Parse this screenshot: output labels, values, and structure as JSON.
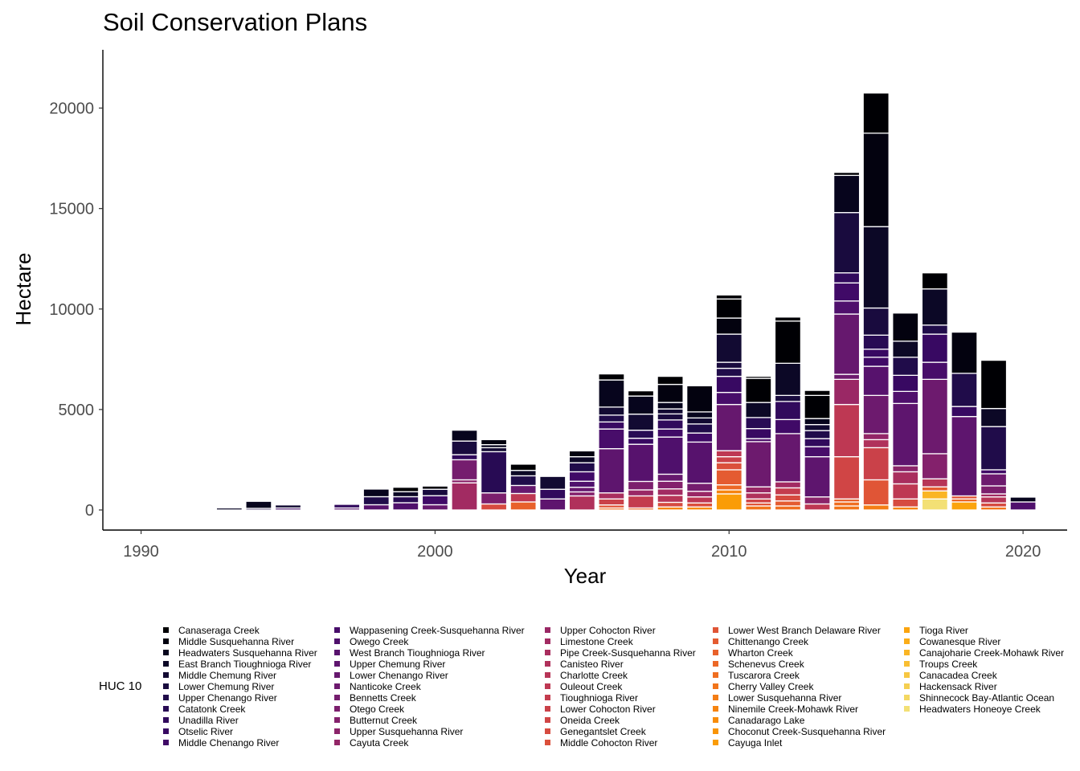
{
  "chart_data": {
    "type": "bar",
    "stacked": true,
    "title": "Soil Conservation Plans",
    "xlabel": "Year",
    "ylabel": "Hectare",
    "xlim": [
      1988.7,
      2021.5
    ],
    "ylim": [
      -1000,
      22900
    ],
    "x_ticks": [
      1990,
      2000,
      2010,
      2020
    ],
    "y_ticks": [
      0,
      5000,
      10000,
      15000,
      20000
    ],
    "grid": false,
    "legend_position": "bottom",
    "legend_title": "HUC 10",
    "legend_entries": [
      {
        "name": "Canaseraga Creek",
        "color": "#000004"
      },
      {
        "name": "Middle Susquehanna River",
        "color": "#03020f"
      },
      {
        "name": "Headwaters Susquehanna River",
        "color": "#07051d"
      },
      {
        "name": "East Branch Tioughnioga River",
        "color": "#0c0826"
      },
      {
        "name": "Middle Chemung River",
        "color": "#120a32"
      },
      {
        "name": "Lower Chemung River",
        "color": "#190b3e"
      },
      {
        "name": "Upper Chenango River",
        "color": "#200c4a"
      },
      {
        "name": "Catatonk Creek",
        "color": "#280b54"
      },
      {
        "name": "Unadilla River",
        "color": "#310a5c"
      },
      {
        "name": "Otselic River",
        "color": "#380962"
      },
      {
        "name": "Middle Chenango River",
        "color": "#400a67"
      },
      {
        "name": "Wappasening Creek-Susquehanna River",
        "color": "#480d6a"
      },
      {
        "name": "Owego Creek",
        "color": "#4f106c"
      },
      {
        "name": "West Branch Tioughnioga River",
        "color": "#57126d"
      },
      {
        "name": "Upper Chemung River",
        "color": "#5e156e"
      },
      {
        "name": "Lower Chenango River",
        "color": "#66186e"
      },
      {
        "name": "Nanticoke Creek",
        "color": "#6d1a6e"
      },
      {
        "name": "Bennetts Creek",
        "color": "#751d6e"
      },
      {
        "name": "Otego Creek",
        "color": "#7c1f6d"
      },
      {
        "name": "Butternut Creek",
        "color": "#84216c"
      },
      {
        "name": "Upper Susquehanna River",
        "color": "#8b246a"
      },
      {
        "name": "Cayuta Creek",
        "color": "#932667"
      },
      {
        "name": "Upper Cohocton River",
        "color": "#9a2865"
      },
      {
        "name": "Limestone Creek",
        "color": "#a22b62"
      },
      {
        "name": "Pipe Creek-Susquehanna River",
        "color": "#a92e5e"
      },
      {
        "name": "Canisteo River",
        "color": "#b0315b"
      },
      {
        "name": "Charlotte Creek",
        "color": "#b73557"
      },
      {
        "name": "Ouleout Creek",
        "color": "#be3853"
      },
      {
        "name": "Tioughnioga River",
        "color": "#c43c4e"
      },
      {
        "name": "Lower Cohocton River",
        "color": "#ca4149"
      },
      {
        "name": "Oneida Creek",
        "color": "#d04545"
      },
      {
        "name": "Genegantslet Creek",
        "color": "#d64b40"
      },
      {
        "name": "Middle Cohocton River",
        "color": "#db503b"
      },
      {
        "name": "Lower West Branch Delaware River",
        "color": "#e05536"
      },
      {
        "name": "Chittenango Creek",
        "color": "#e45b31"
      },
      {
        "name": "Wharton Creek",
        "color": "#e8612b"
      },
      {
        "name": "Schenevus Creek",
        "color": "#ec6826"
      },
      {
        "name": "Tuscarora Creek",
        "color": "#ef6e21"
      },
      {
        "name": "Cherry Valley Creek",
        "color": "#f2751b"
      },
      {
        "name": "Lower Susquehanna River",
        "color": "#f47d15"
      },
      {
        "name": "Ninemile Creek-Mohawk River",
        "color": "#f6840f"
      },
      {
        "name": "Canadarago Lake",
        "color": "#f88c09"
      },
      {
        "name": "Choconut Creek-Susquehanna River",
        "color": "#f99406"
      },
      {
        "name": "Cayuga Inlet",
        "color": "#fa9c07"
      },
      {
        "name": "Tioga River",
        "color": "#fba40e"
      },
      {
        "name": "Cowanesque River",
        "color": "#fbad18"
      },
      {
        "name": "Canajoharie Creek-Mohawk River",
        "color": "#fab524"
      },
      {
        "name": "Troups Creek",
        "color": "#f9be32"
      },
      {
        "name": "Canacadea Creek",
        "color": "#f7c741"
      },
      {
        "name": "Hackensack River",
        "color": "#f5cf51"
      },
      {
        "name": "Shinnecock Bay-Atlantic Ocean",
        "color": "#f4d862"
      },
      {
        "name": "Headwaters Honeoye Creek",
        "color": "#f3e075"
      }
    ],
    "bars": [
      {
        "x": 1990,
        "segments": [
          [
            1,
            50
          ]
        ]
      },
      {
        "x": 1993,
        "segments": [
          [
            3,
            100
          ]
        ]
      },
      {
        "x": 1994,
        "segments": [
          [
            6,
            80
          ],
          [
            2,
            350
          ]
        ]
      },
      {
        "x": 1995,
        "segments": [
          [
            10,
            100
          ],
          [
            4,
            150
          ]
        ]
      },
      {
        "x": 1997,
        "segments": [
          [
            13,
            100
          ],
          [
            8,
            180
          ]
        ]
      },
      {
        "x": 1998,
        "segments": [
          [
            13,
            260
          ],
          [
            6,
            400
          ],
          [
            2,
            380
          ]
        ]
      },
      {
        "x": 1999,
        "segments": [
          [
            12,
            360
          ],
          [
            7,
            300
          ],
          [
            3,
            250
          ],
          [
            0,
            220
          ]
        ]
      },
      {
        "x": 2000,
        "segments": [
          [
            15,
            260
          ],
          [
            10,
            450
          ],
          [
            5,
            320
          ],
          [
            1,
            160
          ]
        ]
      },
      {
        "x": 2001,
        "segments": [
          [
            23,
            1350
          ],
          [
            20,
            150
          ],
          [
            17,
            1000
          ],
          [
            8,
            250
          ],
          [
            5,
            680
          ],
          [
            2,
            540
          ]
        ]
      },
      {
        "x": 2002,
        "segments": [
          [
            31,
            300
          ],
          [
            18,
            550
          ],
          [
            7,
            2050
          ],
          [
            4,
            200
          ],
          [
            2,
            150
          ],
          [
            1,
            250
          ]
        ]
      },
      {
        "x": 2003,
        "segments": [
          [
            35,
            400
          ],
          [
            27,
            420
          ],
          [
            15,
            400
          ],
          [
            6,
            480
          ],
          [
            3,
            270
          ],
          [
            0,
            310
          ]
        ]
      },
      {
        "x": 2004,
        "segments": [
          [
            14,
            550
          ],
          [
            8,
            480
          ],
          [
            4,
            640
          ]
        ]
      },
      {
        "x": 2005,
        "segments": [
          [
            25,
            700
          ],
          [
            19,
            200
          ],
          [
            15,
            230
          ],
          [
            12,
            300
          ],
          [
            10,
            470
          ],
          [
            6,
            450
          ],
          [
            3,
            300
          ],
          [
            1,
            290
          ]
        ]
      },
      {
        "x": 2006,
        "segments": [
          [
            37,
            100
          ],
          [
            33,
            150
          ],
          [
            29,
            300
          ],
          [
            24,
            300
          ],
          [
            14,
            2200
          ],
          [
            11,
            980
          ],
          [
            9,
            350
          ],
          [
            6,
            340
          ],
          [
            4,
            400
          ],
          [
            2,
            1350
          ],
          [
            0,
            300
          ]
        ]
      },
      {
        "x": 2007,
        "segments": [
          [
            36,
            100
          ],
          [
            28,
            600
          ],
          [
            22,
            300
          ],
          [
            18,
            420
          ],
          [
            13,
            1850
          ],
          [
            9,
            300
          ],
          [
            7,
            400
          ],
          [
            4,
            800
          ],
          [
            2,
            900
          ],
          [
            0,
            260
          ]
        ]
      },
      {
        "x": 2008,
        "segments": [
          [
            40,
            150
          ],
          [
            31,
            230
          ],
          [
            26,
            350
          ],
          [
            23,
            320
          ],
          [
            19,
            380
          ],
          [
            15,
            350
          ],
          [
            12,
            1850
          ],
          [
            10,
            400
          ],
          [
            8,
            450
          ],
          [
            5,
            300
          ],
          [
            4,
            250
          ],
          [
            2,
            320
          ],
          [
            1,
            900
          ],
          [
            0,
            400
          ]
        ]
      },
      {
        "x": 2009,
        "segments": [
          [
            41,
            150
          ],
          [
            32,
            200
          ],
          [
            27,
            300
          ],
          [
            22,
            280
          ],
          [
            17,
            400
          ],
          [
            13,
            2050
          ],
          [
            10,
            450
          ],
          [
            6,
            450
          ],
          [
            4,
            300
          ],
          [
            2,
            300
          ],
          [
            1,
            1300
          ]
        ]
      },
      {
        "x": 2010,
        "segments": [
          [
            43,
            800
          ],
          [
            40,
            200
          ],
          [
            36,
            250
          ],
          [
            34,
            750
          ],
          [
            32,
            350
          ],
          [
            29,
            300
          ],
          [
            27,
            300
          ],
          [
            15,
            2300
          ],
          [
            11,
            600
          ],
          [
            9,
            800
          ],
          [
            6,
            400
          ],
          [
            5,
            300
          ],
          [
            4,
            1400
          ],
          [
            1,
            800
          ],
          [
            0,
            950
          ],
          [
            0,
            200
          ]
        ]
      },
      {
        "x": 2011,
        "segments": [
          [
            38,
            200
          ],
          [
            33,
            150
          ],
          [
            30,
            200
          ],
          [
            25,
            300
          ],
          [
            22,
            300
          ],
          [
            16,
            2250
          ],
          [
            12,
            150
          ],
          [
            9,
            500
          ],
          [
            7,
            550
          ],
          [
            3,
            750
          ],
          [
            0,
            1200
          ],
          [
            0,
            100
          ]
        ]
      },
      {
        "x": 2012,
        "segments": [
          [
            37,
            200
          ],
          [
            34,
            250
          ],
          [
            31,
            300
          ],
          [
            28,
            350
          ],
          [
            23,
            300
          ],
          [
            15,
            2400
          ],
          [
            10,
            700
          ],
          [
            8,
            900
          ],
          [
            5,
            300
          ],
          [
            3,
            1600
          ],
          [
            0,
            2100
          ],
          [
            0,
            200
          ]
        ]
      },
      {
        "x": 2013,
        "segments": [
          [
            27,
            300
          ],
          [
            20,
            350
          ],
          [
            14,
            2000
          ],
          [
            11,
            500
          ],
          [
            8,
            400
          ],
          [
            6,
            400
          ],
          [
            4,
            300
          ],
          [
            2,
            300
          ],
          [
            0,
            1150
          ],
          [
            0,
            250
          ]
        ]
      },
      {
        "x": 2014,
        "segments": [
          [
            38,
            200
          ],
          [
            37,
            200
          ],
          [
            35,
            150
          ],
          [
            30,
            2100
          ],
          [
            27,
            2600
          ],
          [
            22,
            1250
          ],
          [
            16,
            250
          ],
          [
            15,
            3000
          ],
          [
            12,
            650
          ],
          [
            10,
            900
          ],
          [
            8,
            500
          ],
          [
            5,
            3000
          ],
          [
            2,
            1850
          ],
          [
            0,
            150
          ]
        ]
      },
      {
        "x": 2015,
        "segments": [
          [
            39,
            250
          ],
          [
            33,
            1250
          ],
          [
            29,
            1600
          ],
          [
            25,
            400
          ],
          [
            21,
            300
          ],
          [
            16,
            1900
          ],
          [
            13,
            1450
          ],
          [
            10,
            450
          ],
          [
            9,
            400
          ],
          [
            7,
            700
          ],
          [
            5,
            1350
          ],
          [
            3,
            4050
          ],
          [
            1,
            4650
          ],
          [
            0,
            2000
          ]
        ]
      },
      {
        "x": 2016,
        "segments": [
          [
            40,
            150
          ],
          [
            31,
            400
          ],
          [
            27,
            750
          ],
          [
            24,
            600
          ],
          [
            20,
            300
          ],
          [
            14,
            3100
          ],
          [
            12,
            600
          ],
          [
            9,
            800
          ],
          [
            6,
            900
          ],
          [
            3,
            800
          ],
          [
            1,
            1400
          ]
        ]
      },
      {
        "x": 2017,
        "segments": [
          [
            51,
            550
          ],
          [
            46,
            400
          ],
          [
            34,
            200
          ],
          [
            26,
            400
          ],
          [
            19,
            1250
          ],
          [
            16,
            3700
          ],
          [
            11,
            850
          ],
          [
            9,
            1400
          ],
          [
            6,
            450
          ],
          [
            3,
            1800
          ],
          [
            0,
            800
          ]
        ]
      },
      {
        "x": 2018,
        "segments": [
          [
            44,
            400
          ],
          [
            36,
            150
          ],
          [
            33,
            150
          ],
          [
            14,
            3950
          ],
          [
            9,
            500
          ],
          [
            6,
            1650
          ],
          [
            1,
            2050
          ]
        ]
      },
      {
        "x": 2019,
        "segments": [
          [
            38,
            150
          ],
          [
            31,
            200
          ],
          [
            26,
            300
          ],
          [
            23,
            150
          ],
          [
            18,
            400
          ],
          [
            16,
            600
          ],
          [
            10,
            200
          ],
          [
            6,
            2150
          ],
          [
            3,
            900
          ],
          [
            0,
            2400
          ]
        ]
      },
      {
        "x": 2020,
        "segments": [
          [
            12,
            400
          ],
          [
            2,
            240
          ]
        ]
      }
    ]
  }
}
